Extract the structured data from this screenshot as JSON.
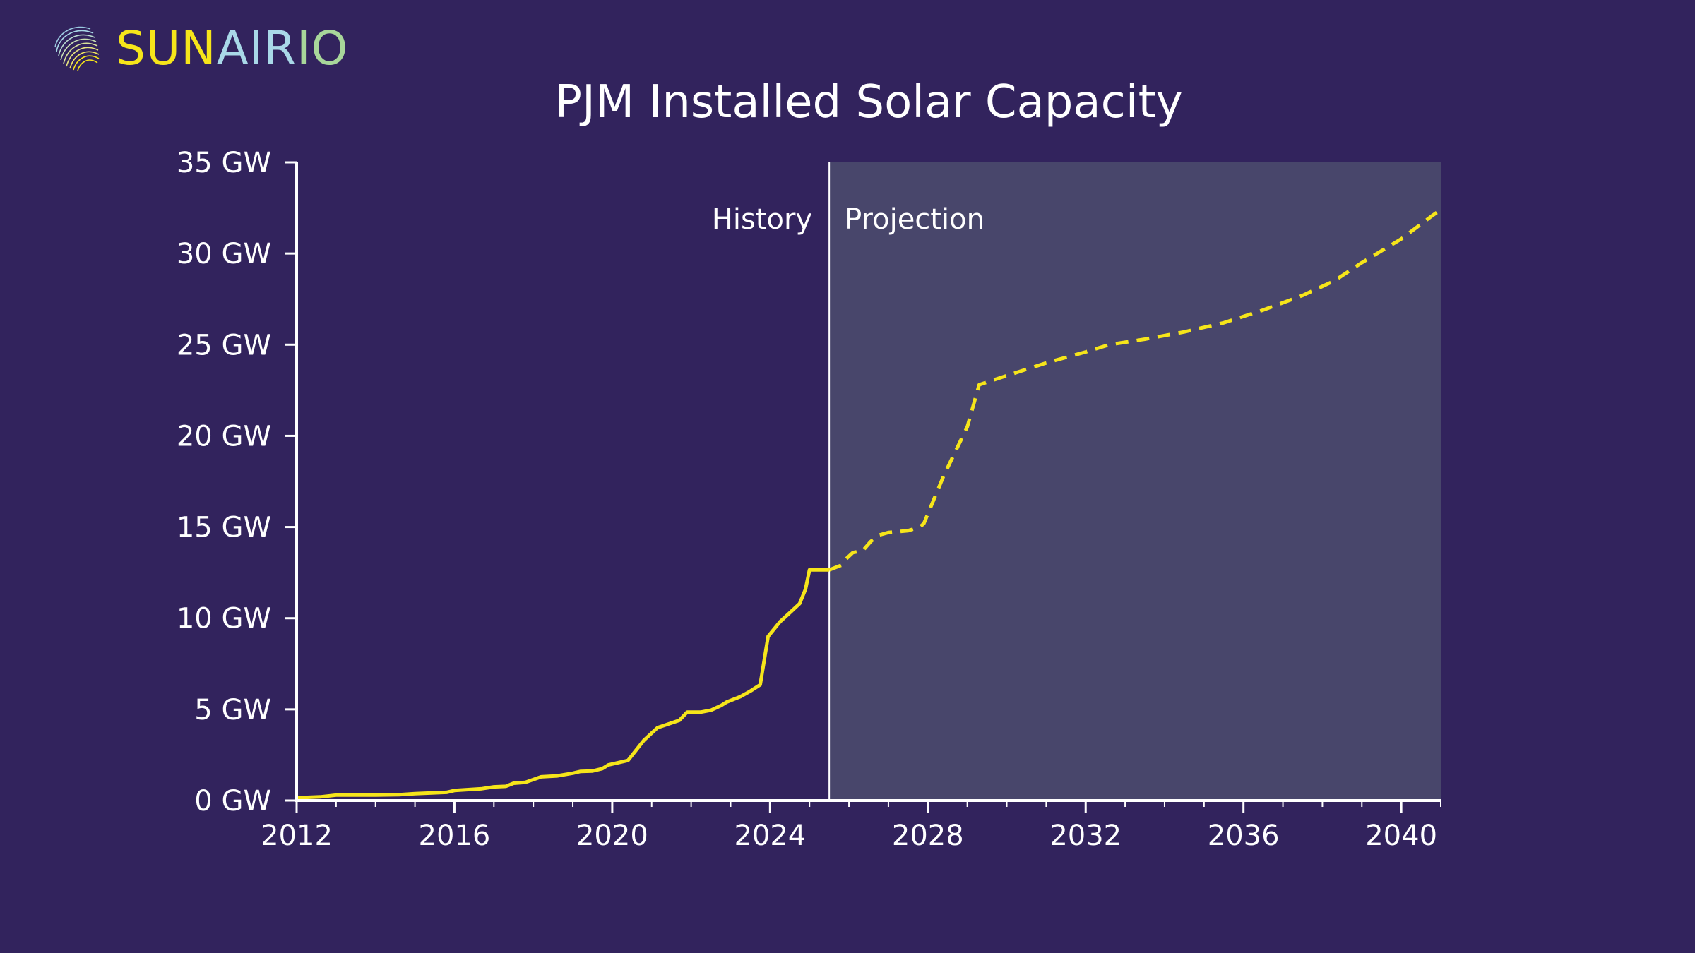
{
  "brand": {
    "part1": "SUN",
    "part2": "AIR",
    "part3": "IO",
    "color1": "#f6e51a",
    "color2": "#a9d8e8",
    "color3": "#a8d69a"
  },
  "colors": {
    "background": "#32235d",
    "projection_band": "#48466b",
    "line": "#f6e51a",
    "axis": "#ffffff"
  },
  "chart_data": {
    "type": "line",
    "title": "PJM Installed Solar Capacity",
    "xlabel": "",
    "ylabel": "",
    "xlim": [
      2012,
      2041
    ],
    "ylim": [
      0,
      35
    ],
    "x_ticks": [
      2012,
      2016,
      2020,
      2024,
      2028,
      2032,
      2036,
      2040
    ],
    "y_ticks": [
      {
        "value": 0,
        "label": "0 GW"
      },
      {
        "value": 5,
        "label": "5 GW"
      },
      {
        "value": 10,
        "label": "10 GW"
      },
      {
        "value": 15,
        "label": "15 GW"
      },
      {
        "value": 20,
        "label": "20 GW"
      },
      {
        "value": 25,
        "label": "25 GW"
      },
      {
        "value": 30,
        "label": "30 GW"
      },
      {
        "value": 35,
        "label": "35 GW"
      }
    ],
    "divider_year": 2025.5,
    "annotations": {
      "history": "History",
      "projection": "Projection"
    },
    "series": [
      {
        "name": "History",
        "style": "solid",
        "points": [
          [
            2012.0,
            0.15
          ],
          [
            2012.6,
            0.2
          ],
          [
            2013.0,
            0.3
          ],
          [
            2014.0,
            0.3
          ],
          [
            2014.6,
            0.32
          ],
          [
            2015.0,
            0.38
          ],
          [
            2015.8,
            0.45
          ],
          [
            2016.0,
            0.55
          ],
          [
            2016.7,
            0.65
          ],
          [
            2017.0,
            0.75
          ],
          [
            2017.3,
            0.78
          ],
          [
            2017.5,
            0.95
          ],
          [
            2017.8,
            1.0
          ],
          [
            2018.2,
            1.3
          ],
          [
            2018.6,
            1.35
          ],
          [
            2019.0,
            1.5
          ],
          [
            2019.2,
            1.6
          ],
          [
            2019.5,
            1.62
          ],
          [
            2019.75,
            1.75
          ],
          [
            2019.9,
            1.95
          ],
          [
            2020.0,
            2.0
          ],
          [
            2020.4,
            2.2
          ],
          [
            2020.8,
            3.3
          ],
          [
            2021.15,
            4.0
          ],
          [
            2021.7,
            4.4
          ],
          [
            2021.9,
            4.85
          ],
          [
            2022.25,
            4.85
          ],
          [
            2022.5,
            4.95
          ],
          [
            2022.75,
            5.2
          ],
          [
            2022.9,
            5.4
          ],
          [
            2023.25,
            5.7
          ],
          [
            2023.5,
            6.0
          ],
          [
            2023.75,
            6.35
          ],
          [
            2023.95,
            9.0
          ],
          [
            2024.25,
            9.8
          ],
          [
            2024.5,
            10.3
          ],
          [
            2024.75,
            10.8
          ],
          [
            2024.9,
            11.6
          ],
          [
            2025.0,
            12.65
          ],
          [
            2025.5,
            12.65
          ]
        ]
      },
      {
        "name": "Projection",
        "style": "dashed",
        "points": [
          [
            2025.5,
            12.65
          ],
          [
            2025.8,
            12.9
          ],
          [
            2025.95,
            13.3
          ],
          [
            2026.1,
            13.6
          ],
          [
            2026.35,
            13.7
          ],
          [
            2026.55,
            14.2
          ],
          [
            2026.75,
            14.55
          ],
          [
            2027.0,
            14.7
          ],
          [
            2027.5,
            14.8
          ],
          [
            2027.8,
            15.0
          ],
          [
            2027.9,
            15.2
          ],
          [
            2028.4,
            17.8
          ],
          [
            2029.0,
            20.5
          ],
          [
            2029.3,
            22.8
          ],
          [
            2030.0,
            23.3
          ],
          [
            2031.0,
            24.0
          ],
          [
            2032.0,
            24.6
          ],
          [
            2032.6,
            25.0
          ],
          [
            2033.5,
            25.3
          ],
          [
            2034.5,
            25.7
          ],
          [
            2035.5,
            26.2
          ],
          [
            2036.5,
            26.9
          ],
          [
            2037.5,
            27.7
          ],
          [
            2038.3,
            28.5
          ],
          [
            2039.0,
            29.5
          ],
          [
            2040.0,
            30.8
          ],
          [
            2040.8,
            32.1
          ],
          [
            2041.0,
            32.4
          ]
        ]
      }
    ]
  }
}
